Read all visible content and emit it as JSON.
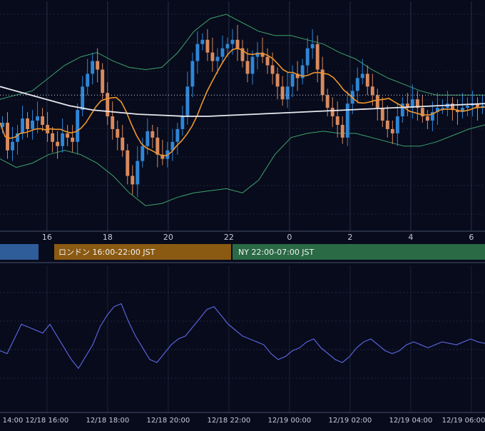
{
  "chart_data": [
    {
      "type": "line",
      "description_kind": "candlestick",
      "colors": {
        "background": "#070b1c",
        "grid": "#2a3045",
        "candle_up": "#2f86d6",
        "candle_down": "#d98a5e",
        "bollinger": "#3fa36b",
        "ma_fast": "#f0962c",
        "ma_slow": "#e8e8ee",
        "current_price_line": "#d8dbe6"
      },
      "x_tick_labels": [
        "16",
        "18",
        "20",
        "22",
        "0",
        "2",
        "4",
        "6"
      ],
      "x_tick_hours": [
        16,
        18,
        20,
        22,
        24,
        26,
        28,
        30
      ],
      "x_range_hours": [
        14.45,
        30.45
      ],
      "y_range": [
        0,
        100
      ],
      "current_price_level": 62,
      "close": [
        49,
        36,
        40,
        44,
        51,
        46,
        50,
        52,
        48,
        44,
        40,
        38,
        44,
        42,
        40,
        55,
        66,
        72,
        78,
        74,
        63,
        52,
        46,
        42,
        36,
        24,
        20,
        31,
        38,
        45,
        42,
        34,
        32,
        36,
        40,
        46,
        52,
        66,
        78,
        86,
        88,
        82,
        78,
        80,
        84,
        86,
        88,
        84,
        78,
        72,
        80,
        82,
        80,
        76,
        72,
        66,
        60,
        66,
        72,
        70,
        76,
        84,
        86,
        74,
        62,
        56,
        52,
        48,
        42,
        58,
        64,
        70,
        72,
        66,
        62,
        56,
        50,
        46,
        44,
        52,
        58,
        56,
        60,
        56,
        52,
        50,
        54,
        56,
        56,
        58,
        55,
        54,
        56,
        57,
        58,
        56,
        57
      ],
      "ma_slow": [
        66,
        63,
        60,
        57,
        55,
        54,
        53,
        52.5,
        52,
        52,
        52.5,
        53,
        53.5,
        54,
        54.5,
        55,
        55.5,
        56,
        56.5,
        57,
        57.5,
        58
      ],
      "bollinger_upper": [
        60,
        62,
        64,
        70,
        76,
        80,
        82,
        78,
        75,
        74,
        75,
        82,
        92,
        98,
        100,
        96,
        92,
        90,
        90,
        88,
        86,
        82,
        79,
        74,
        70,
        67,
        64,
        62,
        62,
        62,
        62
      ],
      "bollinger_lower": [
        32,
        28,
        30,
        34,
        36,
        34,
        30,
        24,
        16,
        10,
        11,
        14,
        16,
        17,
        18,
        16,
        22,
        34,
        42,
        44,
        45,
        44,
        44,
        42,
        40,
        38,
        38,
        40,
        43,
        46,
        48
      ],
      "session_labels": {
        "london": "ロンドン 16:00-22:00 JST",
        "ny": "NY 22:00-07:00 JST"
      },
      "session_colors": {
        "asia": "#2f5d9a",
        "london": "#8a5a12",
        "ny": "#2a6a45"
      }
    },
    {
      "type": "line",
      "colors": {
        "line": "#5a63d8",
        "grid": "#2a3045",
        "background": "#070b1c"
      },
      "x_tick_labels": [
        "14:00",
        "12/18 16:00",
        "12/18 18:00",
        "12/18 20:00",
        "12/18 22:00",
        "12/19 00:00",
        "12/19 02:00",
        "12/19 04:00",
        "12/19 06:00"
      ],
      "x_tick_hours": [
        14,
        16,
        18,
        20,
        22,
        24,
        26,
        28,
        30
      ],
      "y_range": [
        0,
        100
      ],
      "values": [
        42,
        40,
        50,
        60,
        58,
        56,
        54,
        60,
        52,
        44,
        36,
        30,
        38,
        46,
        58,
        66,
        72,
        74,
        62,
        52,
        44,
        36,
        34,
        40,
        46,
        50,
        52,
        58,
        64,
        70,
        72,
        66,
        60,
        56,
        52,
        50,
        48,
        46,
        40,
        36,
        38,
        42,
        44,
        48,
        50,
        44,
        40,
        36,
        34,
        38,
        44,
        48,
        50,
        46,
        42,
        40,
        42,
        46,
        48,
        46,
        44,
        46,
        48,
        47,
        46,
        48,
        50,
        48,
        47
      ]
    }
  ]
}
